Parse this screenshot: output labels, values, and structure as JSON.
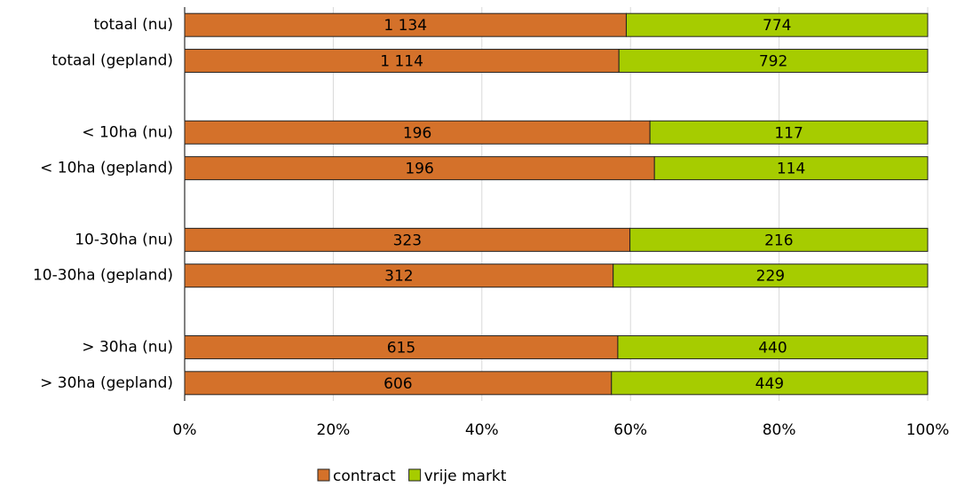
{
  "chart_data": {
    "type": "bar",
    "orientation": "horizontal",
    "stack": "percent",
    "categories": [
      "totaal (nu)",
      "totaal (gepland)",
      null,
      "< 10ha (nu)",
      "< 10ha (gepland)",
      null,
      "10-30ha (nu)",
      "10-30ha (gepland)",
      null,
      "> 30ha (nu)",
      "> 30ha (gepland)"
    ],
    "series": [
      {
        "name": "contract",
        "color": "#d4712a",
        "values": [
          1134,
          1114,
          null,
          196,
          196,
          null,
          323,
          312,
          null,
          615,
          606
        ],
        "value_labels": [
          "1 134",
          "1 114",
          null,
          "196",
          "196",
          null,
          "323",
          "312",
          null,
          "615",
          "606"
        ]
      },
      {
        "name": "vrije markt",
        "color": "#a6cc00",
        "values": [
          774,
          792,
          null,
          117,
          114,
          null,
          216,
          229,
          null,
          440,
          449
        ]
      }
    ],
    "xlim": [
      0,
      100
    ],
    "xticks": [
      {
        "value": 0,
        "label": "0%"
      },
      {
        "value": 20,
        "label": "20%"
      },
      {
        "value": 40,
        "label": "40%"
      },
      {
        "value": 60,
        "label": "60%"
      },
      {
        "value": 80,
        "label": "80%"
      },
      {
        "value": 100,
        "label": "100%"
      }
    ],
    "grid": true,
    "legend": "bottom"
  }
}
